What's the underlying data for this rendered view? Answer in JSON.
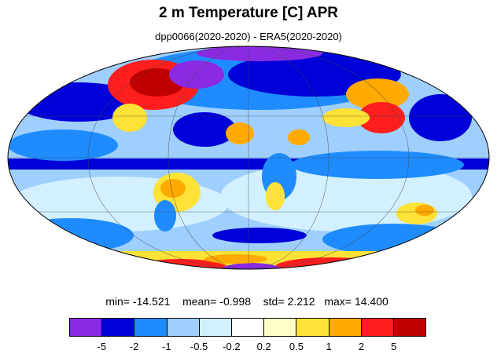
{
  "title": "2 m Temperature [C] APR",
  "subtitle": "dpp0066(2020-2020) - ERA5(2020-2020)",
  "stats": {
    "min_label": "min=",
    "min": "-14.521",
    "mean_label": "mean=",
    "mean": "-0.998",
    "std_label": "std=",
    "std": "2.212",
    "max_label": "max=",
    "max": "14.400"
  },
  "legend": {
    "colors": [
      "#8a2be2",
      "#0000d8",
      "#1e8cff",
      "#9fcfff",
      "#d2f0ff",
      "#ffffff",
      "#ffffc8",
      "#ffe236",
      "#ffaa00",
      "#ff1e1e",
      "#c00000"
    ],
    "ticks": [
      "-5",
      "-2",
      "-1",
      "-0.5",
      "-0.2",
      "0.2",
      "0.5",
      "1",
      "2",
      "5"
    ]
  }
}
